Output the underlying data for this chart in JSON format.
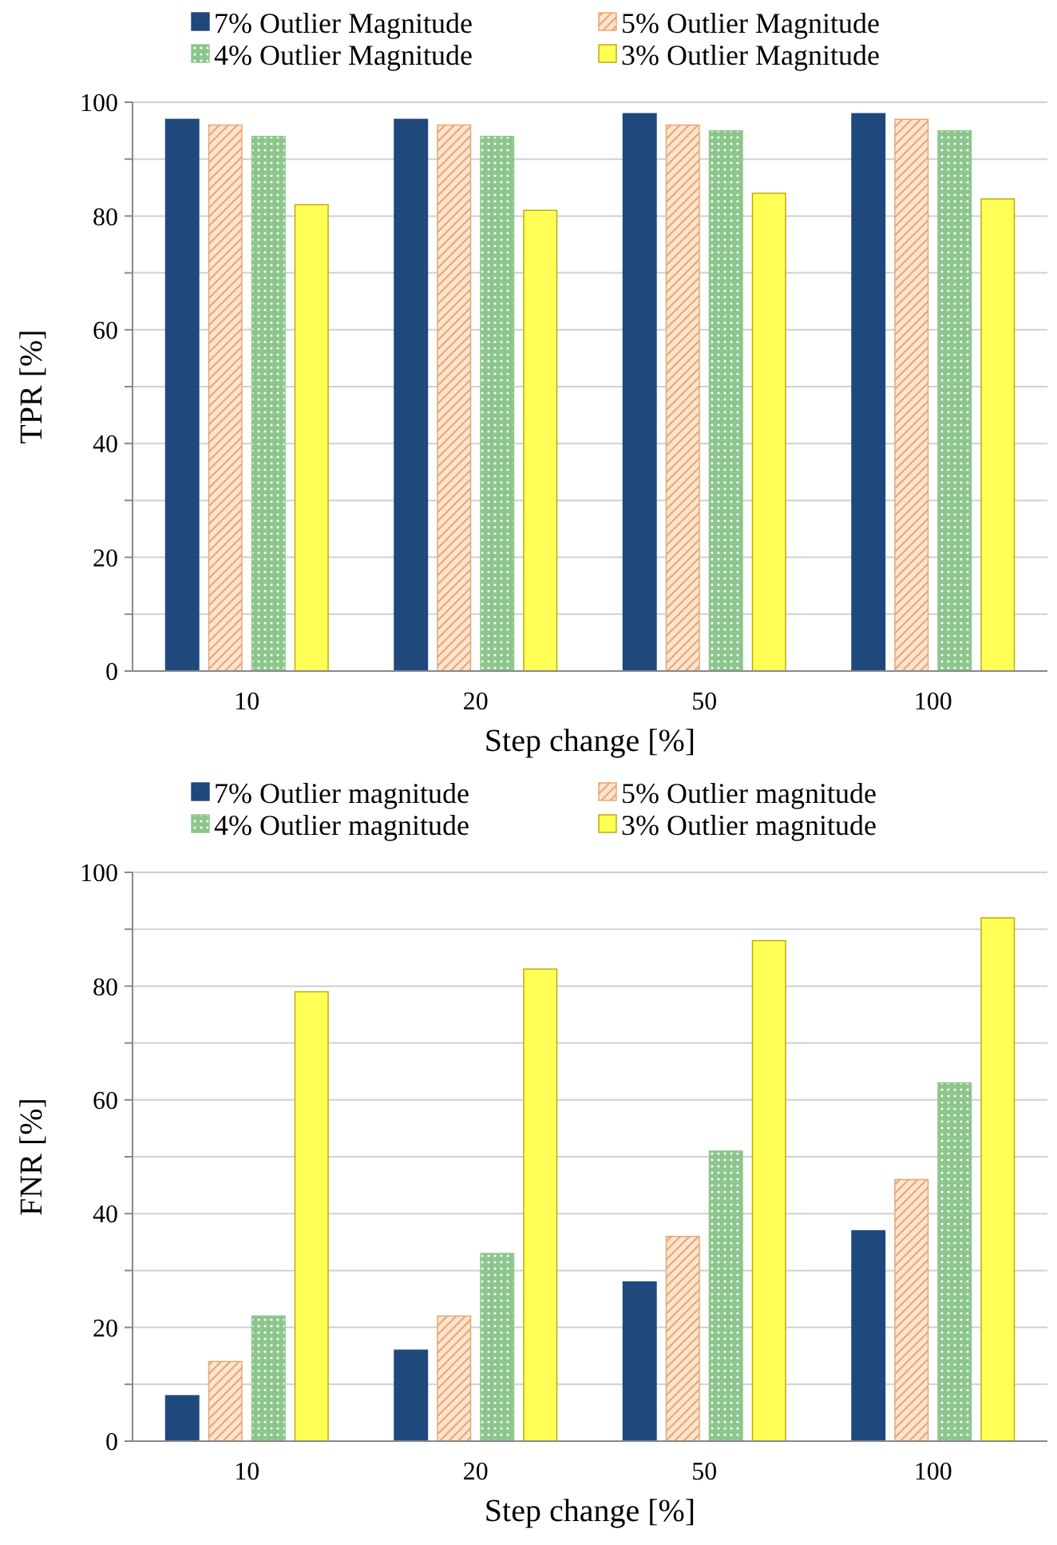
{
  "chart_data": [
    {
      "type": "bar",
      "ylabel": "TPR [%]",
      "xlabel": "Step change [%]",
      "categories": [
        "10",
        "20",
        "50",
        "100"
      ],
      "series": [
        {
          "name": "7% Outlier Magnitude",
          "color": "#1f497d",
          "values": [
            97,
            97,
            98,
            98
          ]
        },
        {
          "name": "5% Outlier Magnitude",
          "color": "#e8a46c",
          "values": [
            96,
            96,
            96,
            97
          ]
        },
        {
          "name": "4% Outlier Magnitude",
          "color": "#8cc68c",
          "values": [
            94,
            94,
            95,
            95
          ]
        },
        {
          "name": "3% Outlier Magnitude",
          "color": "#ffff55",
          "values": [
            82,
            81,
            84,
            83
          ]
        }
      ],
      "ylim": [
        0,
        100
      ],
      "yticks": [
        0,
        {
          "value": 10,
          "label": null
        },
        20,
        {
          "value": 30,
          "label": null
        },
        40,
        {
          "value": 50,
          "label": null
        },
        60,
        {
          "value": 70,
          "label": null
        },
        80,
        {
          "value": 90,
          "label": null
        },
        100
      ],
      "grid": "y",
      "legend": "top"
    },
    {
      "type": "bar",
      "ylabel": "FNR [%]",
      "xlabel": "Step change [%]",
      "categories": [
        "10",
        "20",
        "50",
        "100"
      ],
      "series": [
        {
          "name": "7% Outlier magnitude",
          "color": "#1f497d",
          "values": [
            8,
            16,
            28,
            37
          ]
        },
        {
          "name": "5% Outlier magnitude",
          "color": "#e8a46c",
          "values": [
            14,
            22,
            36,
            46
          ]
        },
        {
          "name": "4% Outlier magnitude",
          "color": "#8cc68c",
          "values": [
            22,
            33,
            51,
            63
          ]
        },
        {
          "name": "3% Outlier magnitude",
          "color": "#ffff55",
          "values": [
            79,
            83,
            88,
            92
          ]
        }
      ],
      "ylim": [
        0,
        100
      ],
      "yticks": [
        0,
        {
          "value": 10,
          "label": null
        },
        20,
        {
          "value": 30,
          "label": null
        },
        40,
        {
          "value": 50,
          "label": null
        },
        60,
        {
          "value": 70,
          "label": null
        },
        80,
        {
          "value": 90,
          "label": null
        },
        100
      ],
      "grid": "y",
      "legend": "top"
    }
  ]
}
